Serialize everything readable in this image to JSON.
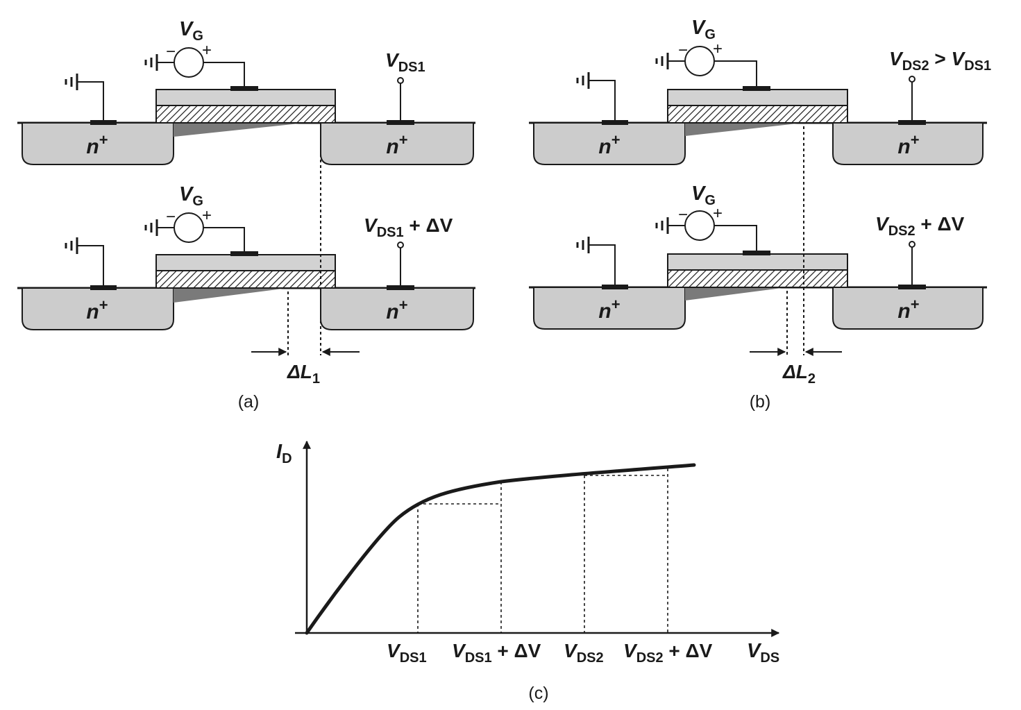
{
  "colors": {
    "ink": "#1a1a1a",
    "well": "#cccccc",
    "gate": "#d2d2d2",
    "channel": "#7a7a7a",
    "background": "#ffffff"
  },
  "labels": {
    "vg": {
      "main": "V",
      "sub": "G"
    },
    "np": {
      "main": "n",
      "sup": "+"
    },
    "minus": "−",
    "plus": "+",
    "a_top_vds": {
      "main": "V",
      "sub": "DS1",
      "tail": ""
    },
    "a_bot_vds": {
      "main": "V",
      "sub": "DS1",
      "tail": " + ΔV"
    },
    "b_top_vds": {
      "main": "V",
      "sub": "DS2",
      "tail": " > ",
      "main2": "V",
      "sub2": "DS1"
    },
    "b_bot_vds": {
      "main": "V",
      "sub": "DS2",
      "tail": " + ΔV"
    },
    "dl1": {
      "main": "ΔL",
      "sub": "1"
    },
    "dl2": {
      "main": "ΔL",
      "sub": "2"
    },
    "cap_a": "(a)",
    "cap_b": "(b)",
    "cap_c": "(c)"
  },
  "chart_data": {
    "type": "line",
    "ylabel": {
      "main": "I",
      "sub": "D"
    },
    "xlabel": {
      "main": "V",
      "sub": "DS"
    },
    "ticks": [
      {
        "main": "V",
        "sub": "DS1",
        "tail": ""
      },
      {
        "main": "V",
        "sub": "DS1",
        "tail": " + ΔV"
      },
      {
        "main": "V",
        "sub": "DS2",
        "tail": ""
      },
      {
        "main": "V",
        "sub": "DS2",
        "tail": " + ΔV"
      }
    ],
    "grid": false
  }
}
